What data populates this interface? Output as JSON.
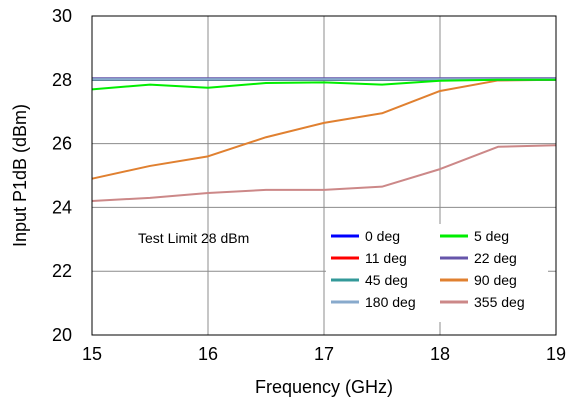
{
  "chart_data": {
    "type": "line",
    "title": "",
    "xlabel": "Frequency (GHz)",
    "ylabel": "Input P1dB (dBm)",
    "xlim": [
      15,
      19
    ],
    "ylim": [
      20,
      30
    ],
    "x_ticks": [
      15,
      16,
      17,
      18,
      19
    ],
    "y_ticks": [
      20,
      22,
      24,
      26,
      28,
      30
    ],
    "grid": true,
    "legend_position": "lower-right",
    "annotation": "Test Limit 28 dBm",
    "series": [
      {
        "name": "0 deg",
        "color": "#0000ff",
        "x": [
          15,
          19
        ],
        "y": [
          28,
          28
        ]
      },
      {
        "name": "5 deg",
        "color": "#00ee00",
        "x": [
          15,
          15.5,
          16,
          16.5,
          17,
          17.5,
          18,
          18.5,
          19
        ],
        "y": [
          27.7,
          27.85,
          27.75,
          27.9,
          27.92,
          27.85,
          27.97,
          28,
          28
        ]
      },
      {
        "name": "11 deg",
        "color": "#ff0000",
        "x": [
          15,
          19
        ],
        "y": [
          28,
          28
        ]
      },
      {
        "name": "22 deg",
        "color": "#6655aa",
        "x": [
          15,
          19
        ],
        "y": [
          28.05,
          28.05
        ]
      },
      {
        "name": "45 deg",
        "color": "#339999",
        "x": [
          15,
          19
        ],
        "y": [
          28,
          28
        ]
      },
      {
        "name": "90 deg",
        "color": "#e08030",
        "x": [
          15,
          15.5,
          16,
          16.5,
          17,
          17.5,
          18,
          18.5,
          19
        ],
        "y": [
          24.9,
          25.3,
          25.6,
          26.2,
          26.65,
          26.95,
          27.65,
          27.98,
          28
        ]
      },
      {
        "name": "180 deg",
        "color": "#88aacc",
        "x": [
          15,
          19
        ],
        "y": [
          28.02,
          28.02
        ]
      },
      {
        "name": "355 deg",
        "color": "#cc8888",
        "x": [
          15,
          15.5,
          16,
          16.5,
          17,
          17.5,
          18,
          18.5,
          19
        ],
        "y": [
          24.2,
          24.3,
          24.45,
          24.55,
          24.55,
          24.65,
          25.2,
          25.9,
          25.95
        ]
      }
    ]
  }
}
